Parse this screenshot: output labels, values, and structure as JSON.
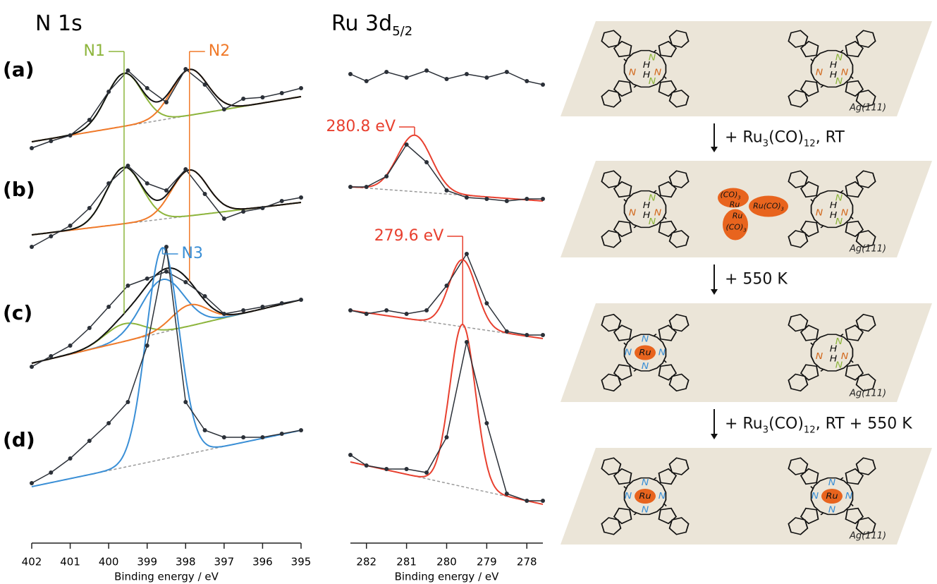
{
  "chart_data": [
    {
      "type": "line",
      "title": "N 1s",
      "xlabel": "Binding energy / eV",
      "xlim": [
        402,
        395
      ],
      "xticks": [
        402,
        401,
        400,
        399,
        398,
        397,
        396,
        395
      ],
      "panels": [
        "(a)",
        "(b)",
        "(c)",
        "(d)"
      ],
      "data_color": "#2b3038",
      "x": [
        402,
        401.5,
        401,
        400.5,
        400,
        399.5,
        399,
        398.5,
        398,
        397.5,
        397,
        396.5,
        396,
        395.5,
        395
      ],
      "rows": [
        {
          "values": [
            10,
            20,
            28,
            50,
            90,
            120,
            95,
            75,
            122,
            100,
            65,
            80,
            82,
            88,
            95
          ],
          "background": [
            19,
            83
          ],
          "peaks": [
            {
              "center": 399.6,
              "height": 75,
              "fwhm": 1.1,
              "color": "#8db53c"
            },
            {
              "center": 397.9,
              "height": 65,
              "fwhm": 1.1,
              "color": "#f07a2a"
            }
          ]
        },
        {
          "values": [
            5,
            20,
            35,
            60,
            95,
            120,
            95,
            85,
            115,
            80,
            45,
            55,
            60,
            70,
            75
          ],
          "background": [
            22,
            68
          ],
          "peaks": [
            {
              "center": 399.6,
              "height": 80,
              "fwhm": 1.1,
              "color": "#8db53c"
            },
            {
              "center": 397.9,
              "height": 65,
              "fwhm": 1.1,
              "color": "#f07a2a"
            }
          ]
        },
        {
          "values": [
            20,
            35,
            50,
            75,
            105,
            135,
            145,
            155,
            140,
            120,
            95,
            100,
            105,
            110,
            115
          ],
          "background": [
            25,
            115
          ],
          "peaks": [
            {
              "center": 399.6,
              "height": 25,
              "fwhm": 1.2,
              "color": "#8db53c"
            },
            {
              "center": 398.6,
              "height": 75,
              "fwhm": 1.3,
              "color": "#3a8fd6"
            },
            {
              "center": 397.9,
              "height": 30,
              "fwhm": 1.1,
              "color": "#f07a2a"
            }
          ]
        },
        {
          "values": [
            35,
            50,
            70,
            95,
            120,
            150,
            230,
            370,
            150,
            110,
            100,
            100,
            100,
            105,
            110
          ],
          "background": [
            30,
            110
          ],
          "peaks": [
            {
              "center": 398.6,
              "height": 300,
              "fwhm": 1.0,
              "color": "#3a8fd6"
            }
          ]
        }
      ],
      "markers": [
        {
          "label": "N1",
          "x": 399.6,
          "color": "#8db53c",
          "side": "left"
        },
        {
          "label": "N2",
          "x": 397.9,
          "color": "#f07a2a",
          "side": "right"
        },
        {
          "label": "N3",
          "x": 398.6,
          "color": "#3a8fd6",
          "side": "right"
        }
      ]
    },
    {
      "type": "line",
      "title": "Ru 3d",
      "title_subscript": "5/2",
      "xlabel": "Binding energy / eV",
      "xlim": [
        282.4,
        277.6
      ],
      "xticks": [
        282,
        281,
        280,
        279,
        278
      ],
      "data_color": "#2b3038",
      "x": [
        282.4,
        282,
        281.5,
        281,
        280.5,
        280,
        279.5,
        279,
        278.5,
        278,
        277.6
      ],
      "rows": [
        {
          "values": [
            35,
            25,
            38,
            30,
            40,
            28,
            35,
            30,
            38,
            25,
            20
          ],
          "background": [],
          "peaks": []
        },
        {
          "values": [
            35,
            35,
            50,
            95,
            70,
            30,
            20,
            18,
            15,
            18,
            18
          ],
          "background": [
            35,
            15
          ],
          "peaks": [
            {
              "center": 280.8,
              "height": 80,
              "fwhm": 1.0,
              "color": "#e8402f"
            }
          ]
        },
        {
          "values": [
            55,
            50,
            55,
            50,
            55,
            90,
            135,
            65,
            25,
            20,
            20
          ],
          "background": [
            55,
            15
          ],
          "peaks": [
            {
              "center": 279.6,
              "height": 95,
              "fwhm": 0.8,
              "color": "#e8402f"
            }
          ]
        },
        {
          "values": [
            75,
            60,
            55,
            55,
            50,
            100,
            235,
            120,
            20,
            10,
            10
          ],
          "background": [
            65,
            5
          ],
          "peaks": [
            {
              "center": 279.6,
              "height": 230,
              "fwhm": 0.75,
              "color": "#e8402f"
            }
          ]
        }
      ],
      "markers": [
        {
          "label": "280.8 eV",
          "x": 280.8,
          "color": "#e8402f",
          "side": "left"
        },
        {
          "label": "279.6 eV",
          "x": 279.6,
          "color": "#e8402f",
          "side": "left"
        }
      ]
    }
  ],
  "scheme": {
    "labels": {
      "N": "N",
      "H": "H",
      "Ru": "Ru"
    },
    "panels": [
      {
        "metalated": [
          false,
          false
        ],
        "surface": "Ag(111)"
      },
      {
        "metalated": [
          false,
          false
        ],
        "surface": "Ag(111)",
        "cluster": [
          [
            "(CO)",
            "3"
          ],
          [
            "Ru"
          ],
          [
            "Ru(CO)",
            "3"
          ],
          [
            "Ru"
          ],
          [
            "(CO)",
            "3"
          ]
        ]
      },
      {
        "metalated": [
          true,
          false
        ],
        "surface": "Ag(111)"
      },
      {
        "metalated": [
          true,
          true
        ],
        "surface": "Ag(111)"
      }
    ],
    "steps": [
      {
        "parts": [
          "+ Ru",
          "3",
          "(CO)",
          "12",
          ", RT"
        ]
      },
      {
        "parts": [
          "+ 550 K"
        ]
      },
      {
        "parts": [
          "+ Ru",
          "3",
          "(CO)",
          "12",
          ", RT + 550 K"
        ]
      }
    ]
  }
}
